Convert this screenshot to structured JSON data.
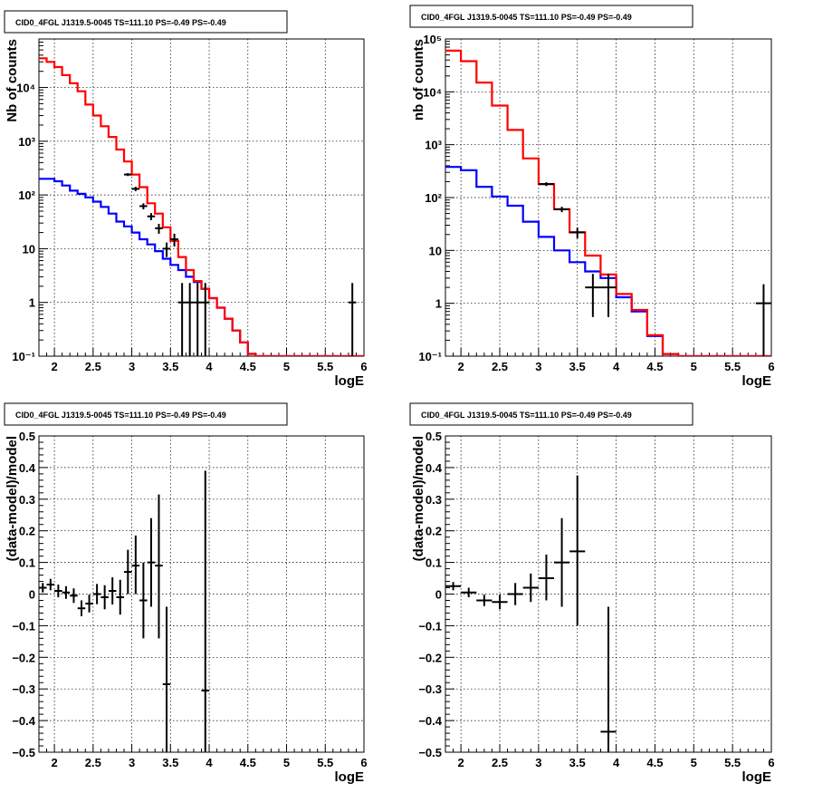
{
  "chart_data": [
    {
      "type": "line",
      "title": "CID0_4FGL J1319.5-0045 TS=111.10 PS=-0.49 PS=-0.49",
      "xlabel": "logE",
      "ylabel": "Nb of counts",
      "xlim": [
        1.8,
        6
      ],
      "ylim": [
        0.1,
        80000
      ],
      "yscale": "log",
      "grid": true,
      "x_ticks": [
        "2",
        "2.5",
        "3",
        "3.5",
        "4",
        "4.5",
        "5",
        "5.5",
        "6"
      ],
      "y_ticks": [
        "10⁻¹",
        "1",
        "10",
        "10²",
        "10³",
        "10⁴"
      ],
      "bin_edges": [
        1.8,
        1.9,
        2.0,
        2.1,
        2.2,
        2.3,
        2.4,
        2.5,
        2.6,
        2.7,
        2.8,
        2.9,
        3.0,
        3.1,
        3.2,
        3.3,
        3.4,
        3.5,
        3.6,
        3.7,
        3.8,
        3.9,
        4.0,
        4.1,
        4.2,
        4.3,
        4.4,
        4.5,
        4.6,
        4.7,
        4.8,
        4.9,
        5.0,
        5.1,
        5.2,
        5.3,
        5.4,
        5.5,
        5.6,
        5.7,
        5.8,
        5.9,
        6.0
      ],
      "series": [
        {
          "color": "#ff0000",
          "values": [
            35000,
            30000,
            24000,
            17000,
            12000,
            8500,
            4800,
            3000,
            1900,
            1200,
            700,
            420,
            240,
            140,
            70,
            45,
            25,
            14,
            7,
            4,
            2.5,
            1.8,
            1.2,
            0.8,
            0.5,
            0.3,
            0.18,
            0.11,
            0.1,
            0.1,
            0.1,
            0.1,
            0.1,
            0.1,
            0.1,
            0.1,
            0.1,
            0.1,
            0.1,
            0.1,
            0.1,
            0.1
          ]
        },
        {
          "color": "#0000ff",
          "values": [
            200,
            200,
            180,
            150,
            120,
            105,
            90,
            75,
            60,
            45,
            32,
            26,
            20,
            15,
            12,
            9,
            6.5,
            5,
            4,
            3,
            2.4,
            1.8,
            1.2,
            0.8,
            0.5,
            0.3,
            0.18,
            0.11,
            0.1,
            0.1,
            0.1,
            0.1,
            0.1,
            0.1,
            0.1,
            0.1,
            0.1,
            0.1,
            0.1,
            0.1,
            0.1,
            0.1
          ]
        }
      ],
      "points": [
        {
          "x": 2.95,
          "y": 240,
          "xerr": 0.05,
          "ylo": 225,
          "yhi": 255
        },
        {
          "x": 3.05,
          "y": 130,
          "xerr": 0.05,
          "ylo": 118,
          "yhi": 142
        },
        {
          "x": 3.15,
          "y": 62,
          "xerr": 0.05,
          "ylo": 54,
          "yhi": 70
        },
        {
          "x": 3.25,
          "y": 40,
          "xerr": 0.05,
          "ylo": 34,
          "yhi": 46
        },
        {
          "x": 3.35,
          "y": 24,
          "xerr": 0.05,
          "ylo": 19,
          "yhi": 29
        },
        {
          "x": 3.45,
          "y": 10,
          "xerr": 0.05,
          "ylo": 7,
          "yhi": 13
        },
        {
          "x": 3.55,
          "y": 15,
          "xerr": 0.05,
          "ylo": 11,
          "yhi": 19
        },
        {
          "x": 3.65,
          "y": 1,
          "xerr": 0.05,
          "ylo": 0.1,
          "yhi": 2.3
        },
        {
          "x": 3.75,
          "y": 1,
          "xerr": 0.05,
          "ylo": 0.1,
          "yhi": 2.3
        },
        {
          "x": 3.85,
          "y": 1,
          "xerr": 0.05,
          "ylo": 0.1,
          "yhi": 2.3
        },
        {
          "x": 3.95,
          "y": 1,
          "xerr": 0.05,
          "ylo": 0.1,
          "yhi": 2.3
        },
        {
          "x": 5.85,
          "y": 1,
          "xerr": 0.05,
          "ylo": 0.1,
          "yhi": 2.3
        }
      ]
    },
    {
      "type": "line",
      "title": "CID0_4FGL J1319.5-0045 TS=111.10 PS=-0.49 PS=-0.49",
      "xlabel": "logE",
      "ylabel": "nb of counts",
      "xlim": [
        1.8,
        6
      ],
      "ylim": [
        0.1,
        100000
      ],
      "yscale": "log",
      "grid": true,
      "x_ticks": [
        "2",
        "2.5",
        "3",
        "3.5",
        "4",
        "4.5",
        "5",
        "5.5",
        "6"
      ],
      "y_ticks": [
        "10⁻¹",
        "1",
        "10",
        "10²",
        "10³",
        "10⁴",
        "10⁵"
      ],
      "bin_edges": [
        1.8,
        2.0,
        2.2,
        2.4,
        2.6,
        2.8,
        3.0,
        3.2,
        3.4,
        3.6,
        3.8,
        4.0,
        4.2,
        4.4,
        4.6,
        4.8,
        5.0,
        5.2,
        5.4,
        5.6,
        5.8,
        6.0
      ],
      "series": [
        {
          "color": "#ff0000",
          "values": [
            60000,
            38000,
            15000,
            5500,
            1900,
            550,
            180,
            60,
            22,
            8,
            3.5,
            1.5,
            0.75,
            0.25,
            0.11,
            0.1,
            0.1,
            0.1,
            0.1,
            0.1,
            0.1
          ]
        },
        {
          "color": "#0000ff",
          "values": [
            380,
            330,
            160,
            105,
            70,
            35,
            18,
            10,
            6,
            4,
            3,
            1.3,
            0.7,
            0.24,
            0.11,
            0.1,
            0.1,
            0.1,
            0.1,
            0.1,
            0.1
          ]
        }
      ],
      "points": [
        {
          "x": 3.1,
          "y": 180,
          "xerr": 0.1,
          "ylo": 165,
          "yhi": 195
        },
        {
          "x": 3.3,
          "y": 60,
          "xerr": 0.1,
          "ylo": 53,
          "yhi": 67
        },
        {
          "x": 3.5,
          "y": 22,
          "xerr": 0.1,
          "ylo": 17,
          "yhi": 27
        },
        {
          "x": 3.7,
          "y": 2,
          "xerr": 0.1,
          "ylo": 0.55,
          "yhi": 3.6
        },
        {
          "x": 3.9,
          "y": 2,
          "xerr": 0.1,
          "ylo": 0.55,
          "yhi": 3.6
        },
        {
          "x": 5.9,
          "y": 1,
          "xerr": 0.1,
          "ylo": 0.1,
          "yhi": 2.3
        }
      ]
    },
    {
      "type": "scatter",
      "title": "CID0_4FGL J1319.5-0045 TS=111.10 PS=-0.49 PS=-0.49",
      "xlabel": "logE",
      "ylabel": "(data-model)/model",
      "xlim": [
        1.8,
        6
      ],
      "ylim": [
        -0.5,
        0.5
      ],
      "grid": true,
      "x_ticks": [
        "2",
        "2.5",
        "3",
        "3.5",
        "4",
        "4.5",
        "5",
        "5.5",
        "6"
      ],
      "y_ticks": [
        "−0.5",
        "−0.4",
        "−0.3",
        "−0.2",
        "−0.1",
        "0",
        "0.1",
        "0.2",
        "0.3",
        "0.4",
        "0.5"
      ],
      "points": [
        {
          "x": 1.85,
          "y": 0.02,
          "xerr": 0.05,
          "ylo": 0.005,
          "yhi": 0.035
        },
        {
          "x": 1.95,
          "y": 0.03,
          "xerr": 0.05,
          "ylo": 0.012,
          "yhi": 0.048
        },
        {
          "x": 2.05,
          "y": 0.01,
          "xerr": 0.05,
          "ylo": -0.01,
          "yhi": 0.03
        },
        {
          "x": 2.15,
          "y": 0.005,
          "xerr": 0.05,
          "ylo": -0.015,
          "yhi": 0.025
        },
        {
          "x": 2.25,
          "y": -0.005,
          "xerr": 0.05,
          "ylo": -0.028,
          "yhi": 0.018
        },
        {
          "x": 2.35,
          "y": -0.045,
          "xerr": 0.05,
          "ylo": -0.07,
          "yhi": -0.02
        },
        {
          "x": 2.45,
          "y": -0.03,
          "xerr": 0.05,
          "ylo": -0.058,
          "yhi": -0.002
        },
        {
          "x": 2.55,
          "y": 0.0,
          "xerr": 0.05,
          "ylo": -0.032,
          "yhi": 0.032
        },
        {
          "x": 2.65,
          "y": -0.01,
          "xerr": 0.05,
          "ylo": -0.048,
          "yhi": 0.028
        },
        {
          "x": 2.75,
          "y": 0.01,
          "xerr": 0.05,
          "ylo": -0.033,
          "yhi": 0.053
        },
        {
          "x": 2.85,
          "y": -0.01,
          "xerr": 0.05,
          "ylo": -0.065,
          "yhi": 0.045
        },
        {
          "x": 2.95,
          "y": 0.07,
          "xerr": 0.05,
          "ylo": 0.0,
          "yhi": 0.14
        },
        {
          "x": 3.05,
          "y": 0.09,
          "xerr": 0.05,
          "ylo": 0.0,
          "yhi": 0.185
        },
        {
          "x": 3.15,
          "y": -0.02,
          "xerr": 0.05,
          "ylo": -0.14,
          "yhi": 0.1
        },
        {
          "x": 3.25,
          "y": 0.1,
          "xerr": 0.05,
          "ylo": -0.04,
          "yhi": 0.24
        },
        {
          "x": 3.35,
          "y": 0.09,
          "xerr": 0.05,
          "ylo": -0.14,
          "yhi": 0.315
        },
        {
          "x": 3.45,
          "y": -0.285,
          "xerr": 0.05,
          "ylo": -0.5,
          "yhi": -0.04
        },
        {
          "x": 3.95,
          "y": -0.305,
          "xerr": 0.05,
          "ylo": -0.5,
          "yhi": 0.39
        }
      ]
    },
    {
      "type": "scatter",
      "title": "CID0_4FGL J1319.5-0045 TS=111.10 PS=-0.49 PS=-0.49",
      "xlabel": "logE",
      "ylabel": "(data-model)/model",
      "xlim": [
        1.8,
        6
      ],
      "ylim": [
        -0.5,
        0.5
      ],
      "grid": true,
      "x_ticks": [
        "2",
        "2.5",
        "3",
        "3.5",
        "4",
        "4.5",
        "5",
        "5.5",
        "6"
      ],
      "y_ticks": [
        "−0.5",
        "−0.4",
        "−0.3",
        "−0.2",
        "−0.1",
        "0",
        "0.1",
        "0.2",
        "0.3",
        "0.4",
        "0.5"
      ],
      "points": [
        {
          "x": 1.9,
          "y": 0.025,
          "xerr": 0.1,
          "ylo": 0.012,
          "yhi": 0.038
        },
        {
          "x": 2.1,
          "y": 0.005,
          "xerr": 0.1,
          "ylo": -0.01,
          "yhi": 0.02
        },
        {
          "x": 2.3,
          "y": -0.02,
          "xerr": 0.1,
          "ylo": -0.038,
          "yhi": -0.002
        },
        {
          "x": 2.5,
          "y": -0.025,
          "xerr": 0.1,
          "ylo": -0.048,
          "yhi": -0.002
        },
        {
          "x": 2.7,
          "y": 0.0,
          "xerr": 0.1,
          "ylo": -0.035,
          "yhi": 0.035
        },
        {
          "x": 2.9,
          "y": 0.02,
          "xerr": 0.1,
          "ylo": -0.025,
          "yhi": 0.065
        },
        {
          "x": 3.1,
          "y": 0.05,
          "xerr": 0.1,
          "ylo": -0.02,
          "yhi": 0.125
        },
        {
          "x": 3.3,
          "y": 0.1,
          "xerr": 0.1,
          "ylo": -0.04,
          "yhi": 0.24
        },
        {
          "x": 3.5,
          "y": 0.135,
          "xerr": 0.1,
          "ylo": -0.1,
          "yhi": 0.375
        },
        {
          "x": 3.9,
          "y": -0.435,
          "xerr": 0.1,
          "ylo": -0.5,
          "yhi": -0.04
        }
      ]
    }
  ]
}
